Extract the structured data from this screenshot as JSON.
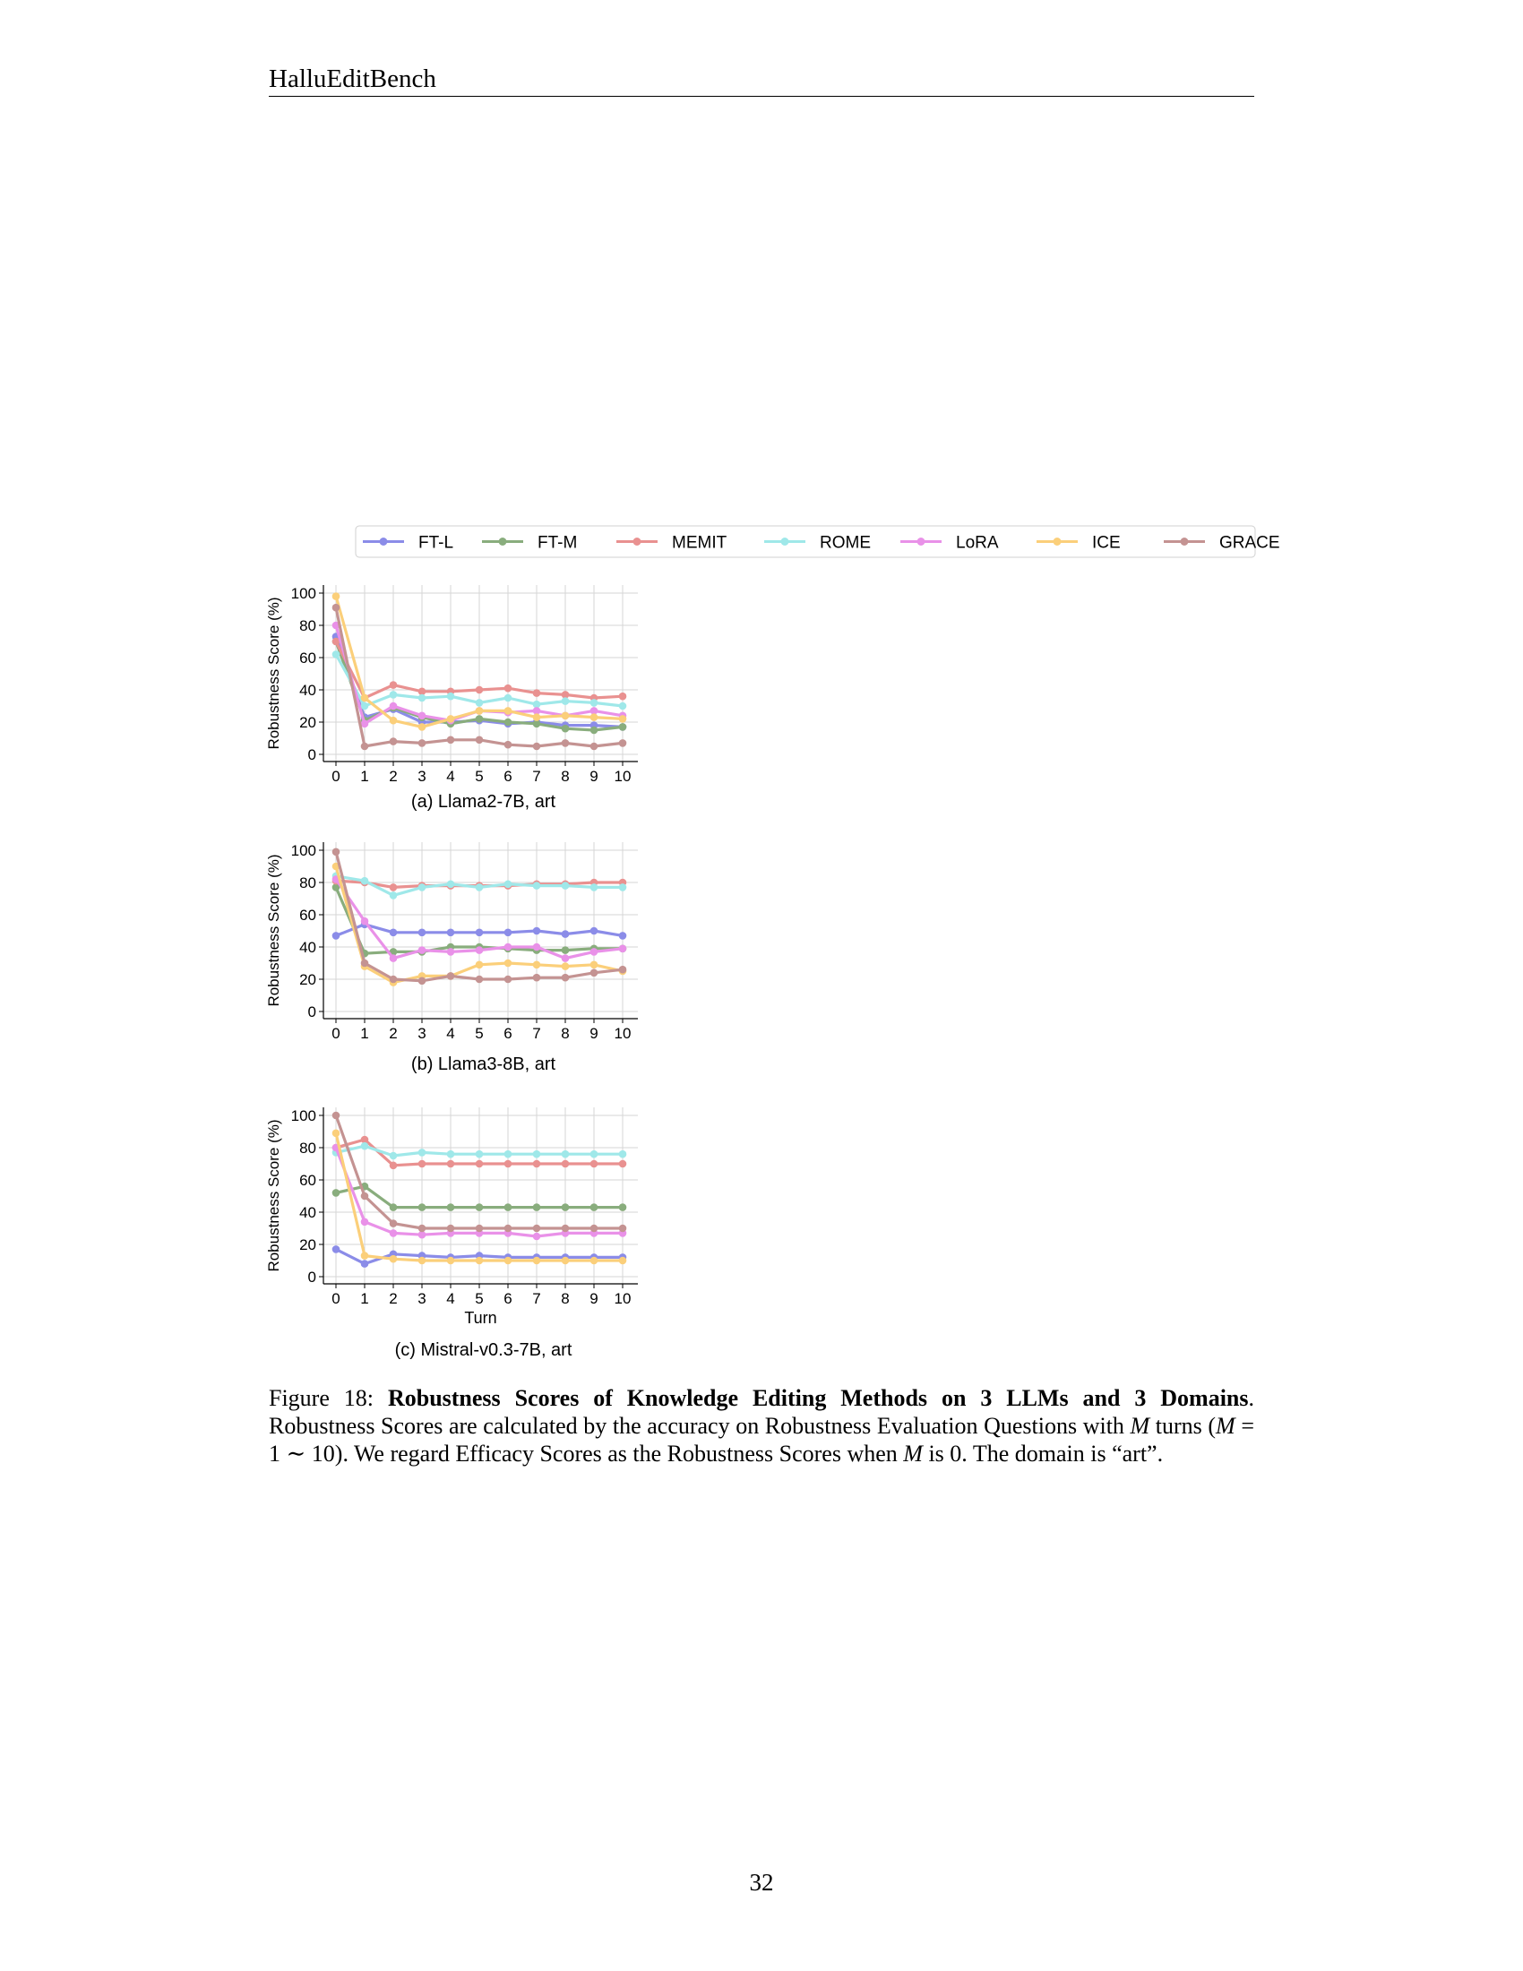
{
  "header": {
    "title": "HalluEditBench"
  },
  "legend": [
    "FT-L",
    "FT-M",
    "MEMIT",
    "ROME",
    "LoRA",
    "ICE",
    "GRACE"
  ],
  "colors": {
    "FT-L": "#8b8ce8",
    "FT-M": "#89ad7d",
    "MEMIT": "#e99190",
    "ROME": "#9fe8e9",
    "LoRA": "#e991e8",
    "ICE": "#fbcf7a",
    "GRACE": "#c49392"
  },
  "chart_data": [
    {
      "type": "line",
      "caption": "(a) Llama2-7B, art",
      "xlabel": "",
      "ylabel": "Robustness Score (%)",
      "x": [
        0,
        1,
        2,
        3,
        4,
        5,
        6,
        7,
        8,
        9,
        10
      ],
      "ylim": [
        0,
        100
      ],
      "yticks": [
        0,
        20,
        40,
        60,
        80,
        100
      ],
      "grid": true,
      "series": [
        {
          "name": "FT-L",
          "values": [
            73,
            23,
            28,
            20,
            20,
            21,
            19,
            20,
            18,
            18,
            17
          ]
        },
        {
          "name": "FT-M",
          "values": [
            70,
            21,
            29,
            23,
            19,
            22,
            20,
            19,
            16,
            15,
            17
          ]
        },
        {
          "name": "MEMIT",
          "values": [
            70,
            35,
            43,
            39,
            39,
            40,
            41,
            38,
            37,
            35,
            36
          ]
        },
        {
          "name": "ROME",
          "values": [
            62,
            30,
            37,
            35,
            36,
            32,
            35,
            31,
            33,
            32,
            30
          ]
        },
        {
          "name": "LoRA",
          "values": [
            80,
            19,
            30,
            24,
            21,
            27,
            26,
            27,
            24,
            27,
            24
          ]
        },
        {
          "name": "ICE",
          "values": [
            98,
            35,
            21,
            17,
            22,
            27,
            27,
            23,
            24,
            23,
            22
          ]
        },
        {
          "name": "GRACE",
          "values": [
            91,
            5,
            8,
            7,
            9,
            9,
            6,
            5,
            7,
            5,
            7
          ]
        }
      ]
    },
    {
      "type": "line",
      "caption": "(b) Llama3-8B, art",
      "xlabel": "",
      "ylabel": "Robustness Score (%)",
      "x": [
        0,
        1,
        2,
        3,
        4,
        5,
        6,
        7,
        8,
        9,
        10
      ],
      "ylim": [
        0,
        100
      ],
      "yticks": [
        0,
        20,
        40,
        60,
        80,
        100
      ],
      "grid": true,
      "series": [
        {
          "name": "FT-L",
          "values": [
            47,
            54,
            49,
            49,
            49,
            49,
            49,
            50,
            48,
            50,
            47
          ]
        },
        {
          "name": "FT-M",
          "values": [
            77,
            36,
            37,
            37,
            40,
            40,
            39,
            38,
            38,
            39,
            39
          ]
        },
        {
          "name": "MEMIT",
          "values": [
            81,
            80,
            77,
            78,
            78,
            78,
            78,
            79,
            79,
            80,
            80
          ]
        },
        {
          "name": "ROME",
          "values": [
            84,
            81,
            72,
            77,
            79,
            77,
            79,
            78,
            78,
            77,
            77
          ]
        },
        {
          "name": "LoRA",
          "values": [
            82,
            56,
            33,
            38,
            37,
            38,
            40,
            40,
            33,
            37,
            39
          ]
        },
        {
          "name": "ICE",
          "values": [
            90,
            28,
            18,
            22,
            22,
            29,
            30,
            29,
            28,
            29,
            25
          ]
        },
        {
          "name": "GRACE",
          "values": [
            99,
            30,
            20,
            19,
            22,
            20,
            20,
            21,
            21,
            24,
            26
          ]
        }
      ]
    },
    {
      "type": "line",
      "caption": "(c) Mistral-v0.3-7B, art",
      "xlabel": "Turn",
      "ylabel": "Robustness Score (%)",
      "x": [
        0,
        1,
        2,
        3,
        4,
        5,
        6,
        7,
        8,
        9,
        10
      ],
      "ylim": [
        0,
        100
      ],
      "yticks": [
        0,
        20,
        40,
        60,
        80,
        100
      ],
      "grid": true,
      "series": [
        {
          "name": "FT-L",
          "values": [
            17,
            8,
            14,
            13,
            12,
            13,
            12,
            12,
            12,
            12,
            12
          ]
        },
        {
          "name": "FT-M",
          "values": [
            52,
            56,
            43,
            43,
            43,
            43,
            43,
            43,
            43,
            43,
            43
          ]
        },
        {
          "name": "MEMIT",
          "values": [
            80,
            85,
            69,
            70,
            70,
            70,
            70,
            70,
            70,
            70,
            70
          ]
        },
        {
          "name": "ROME",
          "values": [
            77,
            81,
            75,
            77,
            76,
            76,
            76,
            76,
            76,
            76,
            76
          ]
        },
        {
          "name": "LoRA",
          "values": [
            80,
            34,
            27,
            26,
            27,
            27,
            27,
            25,
            27,
            27,
            27
          ]
        },
        {
          "name": "ICE",
          "values": [
            89,
            13,
            11,
            10,
            10,
            10,
            10,
            10,
            10,
            10,
            10
          ]
        },
        {
          "name": "GRACE",
          "values": [
            100,
            50,
            33,
            30,
            30,
            30,
            30,
            30,
            30,
            30,
            30
          ]
        }
      ]
    }
  ],
  "caption": {
    "label": "Figure 18:",
    "title": "Robustness Scores of Knowledge Editing Methods on 3 LLMs and 3 Domains",
    "title_end": ".",
    "text1": "Robustness Scores are calculated by the accuracy on Robustness Evaluation Questions with ",
    "M": "M",
    "text2": " turns (",
    "text3": " = 1 ∼ 10). We regard Efficacy Scores as the Robustness Scores when ",
    "text4": " is 0. The domain is “art”."
  },
  "page_number": "32"
}
